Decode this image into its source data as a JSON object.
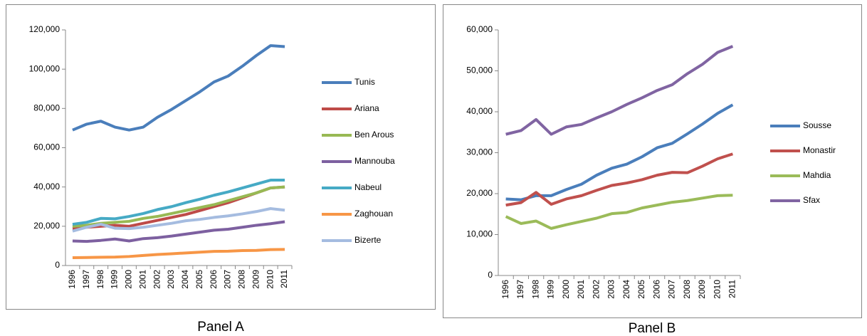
{
  "chart_data": [
    {
      "type": "line",
      "caption": "Panel A",
      "categories": [
        "1996",
        "1997",
        "1998",
        "1999",
        "2000",
        "2001",
        "2002",
        "2003",
        "2004",
        "2005",
        "2006",
        "2007",
        "2008",
        "2009",
        "2010",
        "2011"
      ],
      "ylim": [
        0,
        120000
      ],
      "yticks": [
        0,
        {
          "value": 20000,
          "label": "20,000"
        },
        {
          "value": 40000,
          "label": "40,000"
        },
        {
          "value": 60000,
          "label": "60,000"
        },
        {
          "value": 80000,
          "label": "80,000"
        },
        {
          "value": 100000,
          "label": "100,000"
        },
        {
          "value": 120000,
          "label": "120,000"
        }
      ],
      "grid": false,
      "legend": "right",
      "series": [
        {
          "name": "Tunis",
          "color": "#4a7ebb",
          "values": [
            69000,
            72000,
            73500,
            70500,
            69000,
            70500,
            75500,
            79500,
            84000,
            88500,
            93500,
            96500,
            101500,
            107000,
            112000,
            111500
          ]
        },
        {
          "name": "Ariana",
          "color": "#be4b48",
          "values": [
            19000,
            19500,
            20000,
            20500,
            20000,
            21500,
            23000,
            24500,
            26000,
            28000,
            30000,
            32000,
            34500,
            37000,
            39500,
            40000
          ]
        },
        {
          "name": "Ben Arous",
          "color": "#98b954",
          "values": [
            20000,
            20500,
            21500,
            22000,
            22500,
            24000,
            25000,
            26500,
            28000,
            29500,
            31000,
            33000,
            35000,
            37000,
            39500,
            40000
          ]
        },
        {
          "name": "Mannouba",
          "color": "#7d60a0",
          "values": [
            12500,
            12300,
            12800,
            13500,
            12500,
            13700,
            14200,
            15000,
            16000,
            17000,
            18000,
            18500,
            19500,
            20500,
            21300,
            22300
          ]
        },
        {
          "name": "Nabeul",
          "color": "#46aac5",
          "values": [
            21000,
            22000,
            24000,
            23800,
            25000,
            26500,
            28500,
            30000,
            32000,
            33800,
            35800,
            37500,
            39500,
            41500,
            43500,
            43500
          ]
        },
        {
          "name": "Zaghouan",
          "color": "#f79646",
          "values": [
            4000,
            4100,
            4200,
            4300,
            4600,
            5100,
            5600,
            6000,
            6400,
            6800,
            7200,
            7300,
            7600,
            7700,
            8100,
            8200
          ]
        },
        {
          "name": "Bizerte",
          "color": "#a5bce0",
          "values": [
            17500,
            19500,
            21000,
            19000,
            18800,
            19500,
            20500,
            21500,
            22800,
            23500,
            24500,
            25300,
            26300,
            27500,
            29000,
            28200
          ]
        }
      ]
    },
    {
      "type": "line",
      "caption": "Panel B",
      "categories": [
        "1996",
        "1997",
        "1998",
        "1999",
        "2000",
        "2001",
        "2002",
        "2003",
        "2004",
        "2005",
        "2006",
        "2007",
        "2008",
        "2009",
        "2010",
        "2011"
      ],
      "ylim": [
        0,
        60000
      ],
      "yticks": [
        0,
        {
          "value": 10000,
          "label": "10,000"
        },
        {
          "value": 20000,
          "label": "20,000"
        },
        {
          "value": 30000,
          "label": "30,000"
        },
        {
          "value": 40000,
          "label": "40,000"
        },
        {
          "value": 50000,
          "label": "50,000"
        },
        {
          "value": 60000,
          "label": "60,000"
        }
      ],
      "grid": false,
      "legend": "right",
      "series": [
        {
          "name": "Sousse",
          "color": "#4a7ebb",
          "values": [
            18700,
            18500,
            19500,
            19500,
            21000,
            22300,
            24500,
            26200,
            27200,
            29000,
            31200,
            32300,
            34600,
            37000,
            39600,
            41700
          ]
        },
        {
          "name": "Monastir",
          "color": "#c0504d",
          "values": [
            17200,
            17800,
            20300,
            17400,
            18700,
            19500,
            20800,
            22000,
            22600,
            23400,
            24500,
            25200,
            25100,
            26700,
            28500,
            29700
          ]
        },
        {
          "name": "Mahdia",
          "color": "#9bbb59",
          "values": [
            14400,
            12700,
            13300,
            11500,
            12400,
            13200,
            14000,
            15100,
            15400,
            16500,
            17200,
            17900,
            18300,
            18900,
            19500,
            19600
          ]
        },
        {
          "name": "Sfax",
          "color": "#8064a2",
          "values": [
            34500,
            35400,
            38100,
            34500,
            36300,
            36900,
            38500,
            40000,
            41800,
            43400,
            45200,
            46600,
            49300,
            51600,
            54500,
            56000
          ]
        }
      ]
    }
  ]
}
